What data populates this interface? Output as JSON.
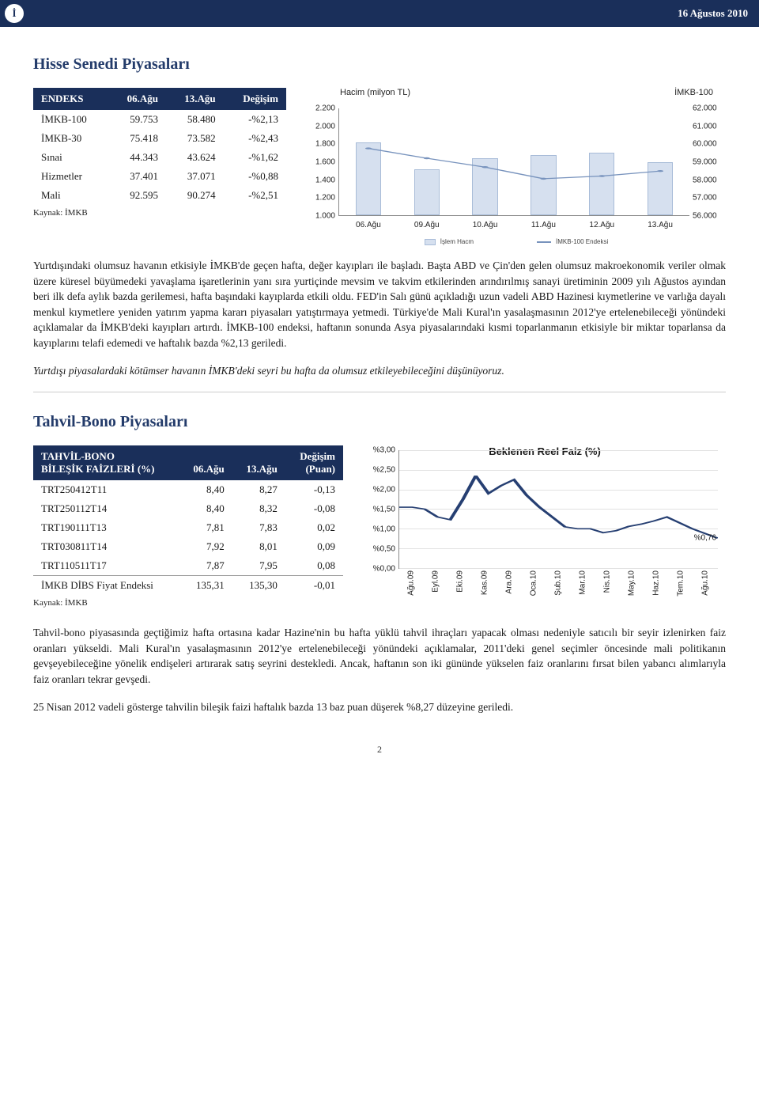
{
  "header": {
    "date": "16 Ağustos 2010",
    "logo_char": "İ"
  },
  "colors": {
    "brand_navy": "#1a2f5a",
    "bar_fill": "#d6e0ef",
    "bar_stroke": "#a8bcd8",
    "line_color": "#7893bd",
    "chart2_line": "#263f72",
    "grid": "#e2e2e2"
  },
  "section1": {
    "title": "Hisse Senedi Piyasaları",
    "table": {
      "headers": [
        "ENDEKS",
        "06.Ağu",
        "13.Ağu",
        "Değişim"
      ],
      "rows": [
        [
          "İMKB-100",
          "59.753",
          "58.480",
          "-%2,13"
        ],
        [
          "İMKB-30",
          "75.418",
          "73.582",
          "-%2,43"
        ],
        [
          "Sınai",
          "44.343",
          "43.624",
          "-%1,62"
        ],
        [
          "Hizmetler",
          "37.401",
          "37.071",
          "-%0,88"
        ],
        [
          "Mali",
          "92.595",
          "90.274",
          "-%2,51"
        ]
      ],
      "footnote": "Kaynak: İMKB"
    },
    "chart": {
      "title_left": "Hacim (milyon TL)",
      "title_right": "İMKB-100",
      "left_axis": {
        "min": 1000,
        "max": 2200,
        "ticks": [
          "2.200",
          "2.000",
          "1.800",
          "1.600",
          "1.400",
          "1.200",
          "1.000"
        ]
      },
      "right_axis": {
        "min": 56000,
        "max": 62000,
        "ticks": [
          "62.000",
          "61.000",
          "60.000",
          "59.000",
          "58.000",
          "57.000",
          "56.000"
        ]
      },
      "x_labels": [
        "06.Ağu",
        "09.Ağu",
        "10.Ağu",
        "11.Ağu",
        "12.Ağu",
        "13.Ağu"
      ],
      "volume": [
        1820,
        1520,
        1640,
        1680,
        1700,
        1600
      ],
      "index": [
        59753,
        59200,
        58700,
        58050,
        58200,
        58480
      ],
      "legend": {
        "bar": "İşlem Hacm",
        "line": "İMKB-100 Endeksi"
      }
    },
    "para1": "Yurtdışındaki olumsuz havanın etkisiyle İMKB'de geçen hafta, değer kayıpları ile başladı. Başta ABD ve Çin'den gelen olumsuz makroekonomik veriler olmak üzere küresel büyümedeki yavaşlama işaretlerinin yanı sıra yurtiçinde mevsim ve takvim etkilerinden arındırılmış sanayi üretiminin 2009 yılı Ağustos ayından beri ilk defa aylık bazda gerilemesi, hafta başındaki kayıplarda etkili oldu. FED'in Salı günü açıkladığı uzun vadeli ABD Hazinesi kıymetlerine ve varlığa dayalı menkul kıymetlere yeniden yatırım yapma kararı piyasaları yatıştırmaya yetmedi. Türkiye'de Mali Kural'ın yasalaşmasının 2012'ye ertelenebileceği yönündeki açıklamalar da İMKB'deki kayıpları artırdı. İMKB-100 endeksi, haftanın sonunda Asya piyasalarındaki kısmi toparlanmanın etkisiyle bir miktar toparlansa da kayıplarını telafi edemedi ve haftalık bazda %2,13 geriledi.",
    "para2": "Yurtdışı piyasalardaki kötümser havanın İMKB'deki seyri bu hafta da olumsuz etkileyebileceğini düşünüyoruz."
  },
  "section2": {
    "title": "Tahvil-Bono Piyasaları",
    "table": {
      "head1": "TAHVİL-BONO",
      "head2": "BİLEŞİK FAİZLERİ (%)",
      "col2": "06.Ağu",
      "col3": "13.Ağu",
      "col4a": "Değişim",
      "col4b": "(Puan)",
      "rows": [
        [
          "TRT250412T11",
          "8,40",
          "8,27",
          "-0,13"
        ],
        [
          "TRT250112T14",
          "8,40",
          "8,32",
          "-0,08"
        ],
        [
          "TRT190111T13",
          "7,81",
          "7,83",
          "0,02"
        ],
        [
          "TRT030811T14",
          "7,92",
          "8,01",
          "0,09"
        ],
        [
          "TRT110511T17",
          "7,87",
          "7,95",
          "0,08"
        ],
        [
          "İMKB DİBS Fiyat Endeksi",
          "135,31",
          "135,30",
          "-0,01"
        ]
      ],
      "footnote": "Kaynak: İMKB"
    },
    "chart": {
      "title": "Beklenen Reel Faiz (%)",
      "y": {
        "min": 0,
        "max": 3,
        "ticks": [
          "%3,00",
          "%2,50",
          "%2,00",
          "%1,50",
          "%1,00",
          "%0,50",
          "%0,00"
        ]
      },
      "x_labels": [
        "Ağu.09",
        "Eyl.09",
        "Eki.09",
        "Kas.09",
        "Ara.09",
        "Oca.10",
        "Şub.10",
        "Mar.10",
        "Nis.10",
        "May.10",
        "Haz.10",
        "Tem.10",
        "Ağu.10"
      ],
      "series": [
        1.55,
        1.55,
        1.5,
        1.3,
        1.23,
        1.75,
        2.35,
        1.9,
        2.1,
        2.25,
        1.85,
        1.55,
        1.3,
        1.05,
        1.0,
        1.0,
        0.9,
        0.95,
        1.06,
        1.12,
        1.2,
        1.3,
        1.15,
        1.0,
        0.88,
        0.76
      ],
      "end_label": "%0,76"
    },
    "para1": "Tahvil-bono piyasasında geçtiğimiz hafta ortasına kadar Hazine'nin bu hafta yüklü tahvil ihraçları yapacak olması nedeniyle satıcılı bir seyir izlenirken faiz oranları yükseldi. Mali Kural'ın yasalaşmasının 2012'ye ertelenebileceği yönündeki açıklamalar, 2011'deki genel seçimler öncesinde mali politikanın gevşeyebileceğine yönelik endişeleri artırarak satış seyrini destekledi. Ancak, haftanın son iki gününde yükselen faiz oranlarını fırsat bilen yabancı alımlarıyla faiz oranları tekrar gevşedi.",
    "para2": "25 Nisan 2012 vadeli gösterge tahvilin bileşik faizi haftalık bazda 13 baz puan düşerek %8,27 düzeyine geriledi."
  },
  "page_number": "2"
}
